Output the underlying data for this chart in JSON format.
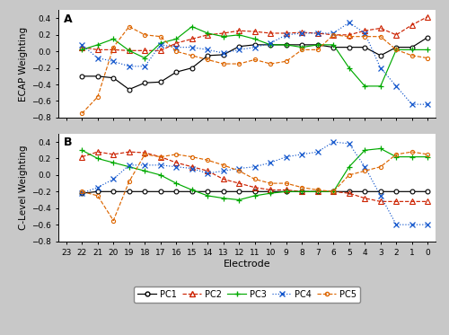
{
  "electrodes": [
    22,
    21,
    20,
    19,
    18,
    17,
    16,
    15,
    14,
    13,
    12,
    11,
    10,
    9,
    8,
    7,
    6,
    5,
    4,
    3,
    2,
    1,
    0
  ],
  "xtick_positions": [
    23,
    22,
    21,
    20,
    19,
    18,
    17,
    16,
    15,
    14,
    13,
    12,
    11,
    10,
    9,
    8,
    7,
    6,
    5,
    4,
    3,
    2,
    1,
    0
  ],
  "panel_A": {
    "PC1": [
      -0.3,
      -0.3,
      -0.32,
      -0.46,
      -0.38,
      -0.37,
      -0.25,
      -0.2,
      -0.05,
      -0.04,
      0.06,
      0.08,
      0.08,
      0.08,
      0.08,
      0.08,
      0.05,
      0.05,
      0.05,
      -0.05,
      0.05,
      0.05,
      0.17
    ],
    "PC2": [
      0.05,
      0.02,
      0.02,
      0.01,
      0.01,
      0.01,
      0.1,
      0.15,
      0.2,
      0.22,
      0.25,
      0.24,
      0.22,
      0.22,
      0.23,
      0.22,
      0.2,
      0.2,
      0.25,
      0.28,
      0.2,
      0.32,
      0.42
    ],
    "PC3": [
      0.02,
      0.08,
      0.15,
      0.01,
      -0.08,
      0.1,
      0.15,
      0.3,
      0.22,
      0.18,
      0.2,
      0.15,
      0.08,
      0.08,
      0.05,
      0.08,
      0.08,
      -0.2,
      -0.42,
      -0.42,
      0.02,
      0.02,
      0.02
    ],
    "PC4": [
      0.08,
      -0.08,
      -0.12,
      -0.18,
      -0.18,
      0.08,
      0.05,
      0.05,
      0.02,
      -0.02,
      0.02,
      0.05,
      0.1,
      0.2,
      0.22,
      0.22,
      0.22,
      0.35,
      0.22,
      -0.2,
      -0.42,
      -0.64,
      -0.64
    ],
    "PC5": [
      -0.75,
      -0.55,
      0.05,
      0.3,
      0.2,
      0.18,
      0.0,
      -0.05,
      -0.1,
      -0.15,
      -0.15,
      -0.1,
      -0.15,
      -0.12,
      0.02,
      0.02,
      0.2,
      0.18,
      0.18,
      0.18,
      0.02,
      -0.05,
      -0.08
    ]
  },
  "panel_B": {
    "PC1": [
      -0.22,
      -0.2,
      -0.2,
      -0.2,
      -0.2,
      -0.2,
      -0.2,
      -0.2,
      -0.2,
      -0.2,
      -0.2,
      -0.2,
      -0.2,
      -0.2,
      -0.2,
      -0.2,
      -0.2,
      -0.2,
      -0.2,
      -0.2,
      -0.2,
      -0.2,
      -0.2
    ],
    "PC2": [
      0.22,
      0.28,
      0.25,
      0.28,
      0.27,
      0.22,
      0.15,
      0.1,
      0.05,
      -0.05,
      -0.1,
      -0.15,
      -0.18,
      -0.18,
      -0.2,
      -0.2,
      -0.2,
      -0.22,
      -0.28,
      -0.32,
      -0.32,
      -0.32,
      -0.32
    ],
    "PC3": [
      0.3,
      0.2,
      0.15,
      0.1,
      0.05,
      0.0,
      -0.1,
      -0.18,
      -0.25,
      -0.28,
      -0.3,
      -0.25,
      -0.22,
      -0.2,
      -0.2,
      -0.2,
      -0.2,
      0.1,
      0.3,
      0.32,
      0.22,
      0.22,
      0.22
    ],
    "PC4": [
      -0.22,
      -0.15,
      -0.05,
      0.12,
      0.12,
      0.12,
      0.1,
      0.08,
      0.02,
      0.05,
      0.08,
      0.1,
      0.15,
      0.22,
      0.25,
      0.28,
      0.4,
      0.38,
      0.1,
      -0.25,
      -0.6,
      -0.6,
      -0.6
    ],
    "PC5": [
      -0.2,
      -0.25,
      -0.55,
      -0.08,
      0.25,
      0.22,
      0.25,
      0.22,
      0.18,
      0.12,
      0.05,
      -0.05,
      -0.1,
      -0.1,
      -0.15,
      -0.18,
      -0.2,
      0.0,
      0.05,
      0.1,
      0.25,
      0.28,
      0.25
    ]
  },
  "colors": {
    "PC1": "#000000",
    "PC2": "#cc2200",
    "PC3": "#00aa00",
    "PC4": "#1155cc",
    "PC5": "#dd6600"
  },
  "linestyles": {
    "PC1": "-",
    "PC2": "--",
    "PC3": "-",
    "PC4": ":",
    "PC5": "--"
  },
  "ylim": [
    -0.8,
    0.5
  ],
  "yticks": [
    -0.8,
    -0.6,
    -0.4,
    -0.2,
    0.0,
    0.2,
    0.4
  ],
  "ylabel_A": "ECAP Weighting",
  "ylabel_B": "C-Level Weighting",
  "xlabel": "Electrode",
  "fig_facecolor": "#c8c8c8",
  "ax_facecolor": "#ffffff"
}
